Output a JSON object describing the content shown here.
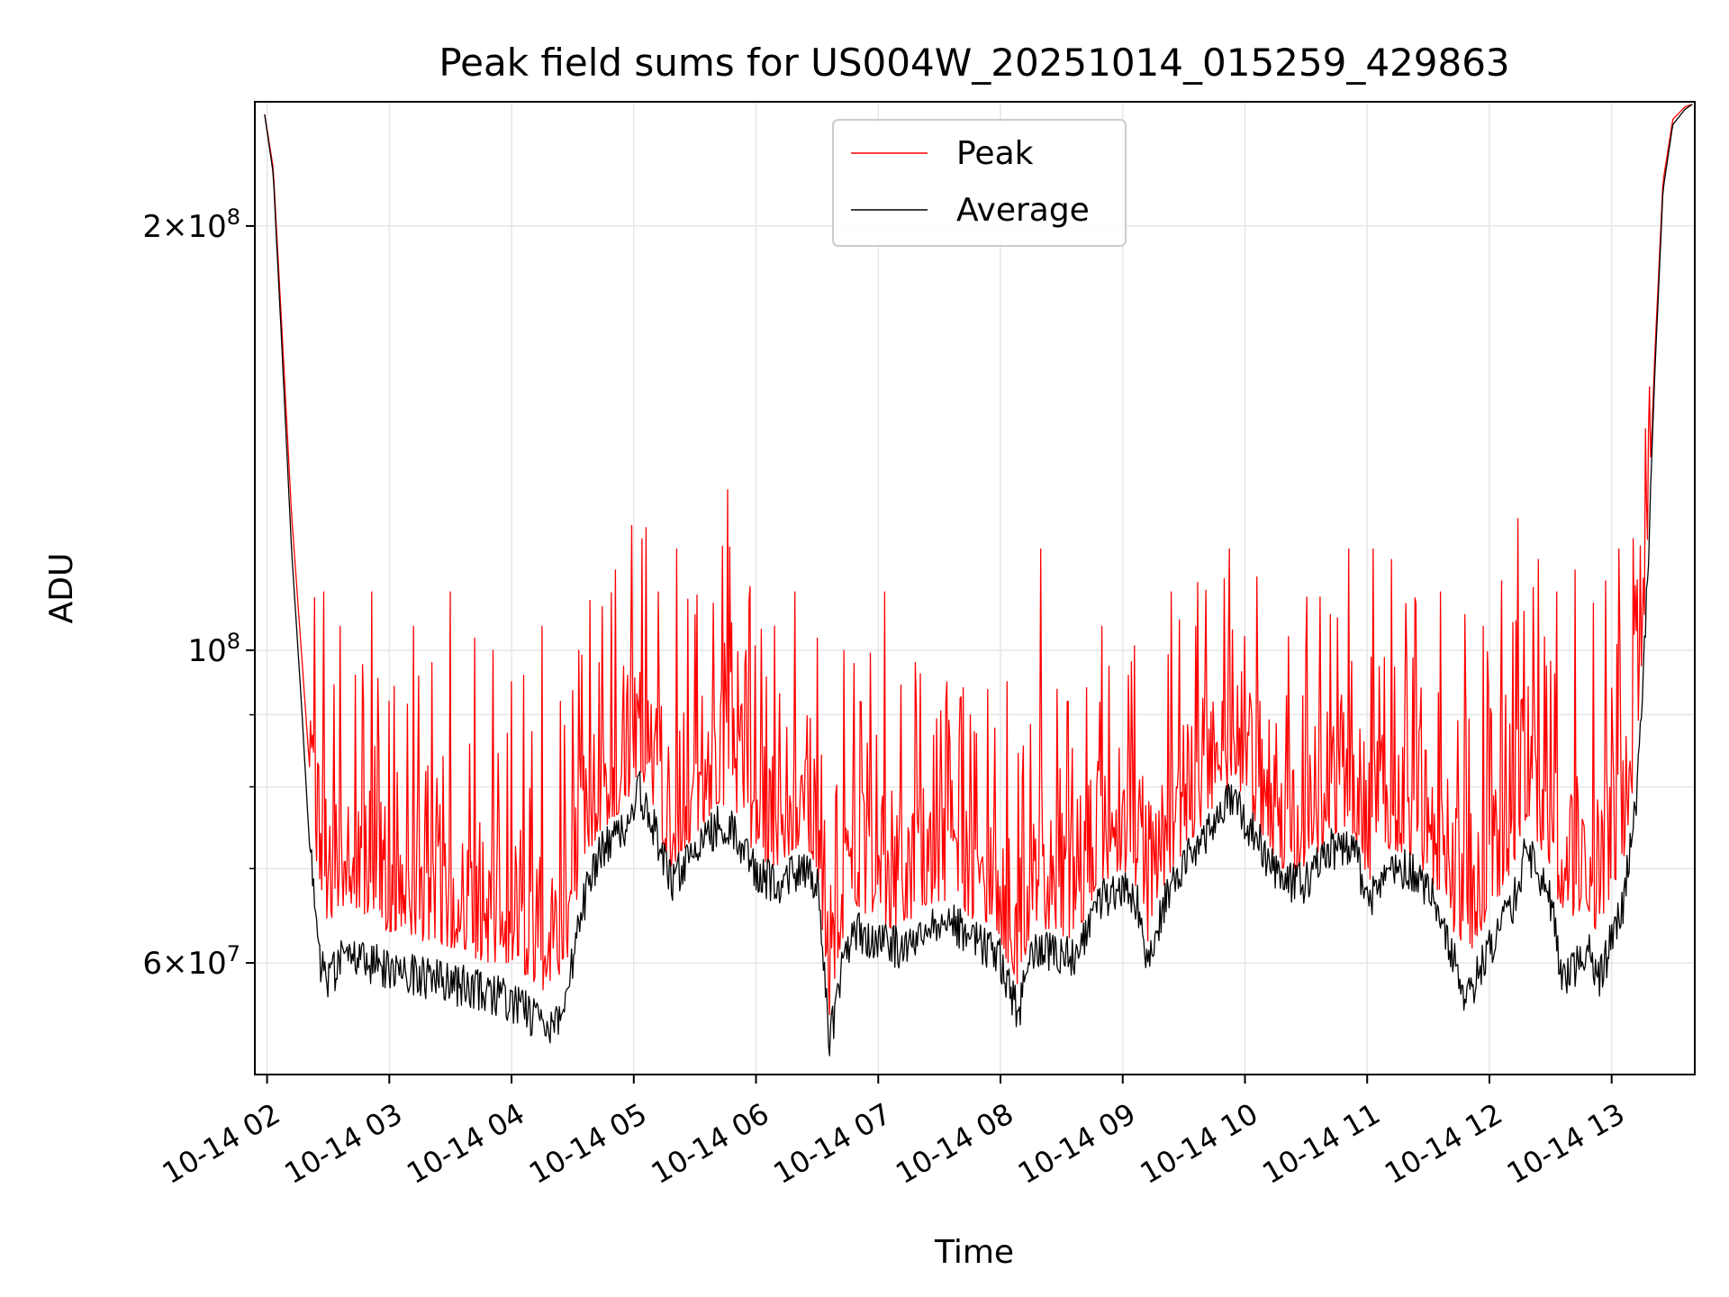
{
  "chart_data": {
    "type": "line",
    "title": "Peak field sums for US004W_20251014_015259_429863",
    "xlabel": "Time",
    "ylabel": "ADU",
    "yscale": "log",
    "grid": true,
    "legend_position": "top-center",
    "x_unit": "hours since 10-14 00:00",
    "xlim": [
      1.9,
      13.68
    ],
    "ylim": [
      50000000,
      245000000
    ],
    "x_ticks": [
      {
        "value": 2,
        "label": "10-14 02"
      },
      {
        "value": 3,
        "label": "10-14 03"
      },
      {
        "value": 4,
        "label": "10-14 04"
      },
      {
        "value": 5,
        "label": "10-14 05"
      },
      {
        "value": 6,
        "label": "10-14 06"
      },
      {
        "value": 7,
        "label": "10-14 07"
      },
      {
        "value": 8,
        "label": "10-14 08"
      },
      {
        "value": 9,
        "label": "10-14 09"
      },
      {
        "value": 10,
        "label": "10-14 10"
      },
      {
        "value": 11,
        "label": "10-14 11"
      },
      {
        "value": 12,
        "label": "10-14 12"
      },
      {
        "value": 13,
        "label": "10-14 13"
      }
    ],
    "y_major_ticks": [
      {
        "value": 60000000,
        "mant": "6",
        "exp": "7"
      },
      {
        "value": 100000000,
        "mant": "",
        "exp": "8"
      },
      {
        "value": 200000000,
        "mant": "2",
        "exp": "8"
      }
    ],
    "y_minor_ticks": [
      70000000,
      80000000,
      90000000
    ],
    "series": [
      {
        "name": "Peak",
        "color": "#ff0000",
        "baseline_x": [
          1.98,
          2.05,
          2.12,
          2.2,
          2.28,
          2.35,
          2.42,
          2.5,
          2.6,
          2.8,
          3.0,
          3.2,
          3.4,
          3.6,
          3.8,
          4.0,
          4.2,
          4.3,
          4.45,
          4.55,
          4.7,
          4.9,
          5.0,
          5.05,
          5.15,
          5.3,
          5.5,
          5.7,
          5.8,
          6.0,
          6.2,
          6.4,
          6.5,
          6.6,
          6.7,
          6.8,
          7.0,
          7.2,
          7.4,
          7.6,
          7.8,
          8.0,
          8.15,
          8.25,
          8.4,
          8.6,
          8.8,
          9.0,
          9.15,
          9.2,
          9.4,
          9.6,
          9.8,
          9.9,
          10.1,
          10.3,
          10.5,
          10.7,
          10.9,
          11.0,
          11.2,
          11.4,
          11.6,
          11.8,
          12.0,
          12.2,
          12.3,
          12.5,
          12.6,
          12.8,
          12.9,
          13.0,
          13.1,
          13.2,
          13.28,
          13.35,
          13.42,
          13.5,
          13.6,
          13.66
        ],
        "baseline_y": [
          240000000,
          220000000,
          170000000,
          125000000,
          100000000,
          82000000,
          68000000,
          64000000,
          66000000,
          65000000,
          63000000,
          62000000,
          62000000,
          61000000,
          60000000,
          60000000,
          58000000,
          57000000,
          60000000,
          68000000,
          74000000,
          77000000,
          80000000,
          82000000,
          78000000,
          70000000,
          74000000,
          78000000,
          77000000,
          71000000,
          70000000,
          73000000,
          70000000,
          55000000,
          62000000,
          66000000,
          64000000,
          63000000,
          66000000,
          66000000,
          64000000,
          62000000,
          57000000,
          63000000,
          63000000,
          62000000,
          68000000,
          70000000,
          67000000,
          62000000,
          70000000,
          74000000,
          79000000,
          80000000,
          75000000,
          70000000,
          70000000,
          74000000,
          74000000,
          68000000,
          72000000,
          71000000,
          67000000,
          60000000,
          65000000,
          70000000,
          76000000,
          70000000,
          64000000,
          66000000,
          62000000,
          68000000,
          70000000,
          84000000,
          110000000,
          160000000,
          215000000,
          238000000,
          243000000,
          244000000
        ],
        "spikes": [
          {
            "x": 2.2,
            "y": 138000000
          },
          {
            "x": 2.32,
            "y": 130000000
          },
          {
            "x": 2.46,
            "y": 110000000
          },
          {
            "x": 2.6,
            "y": 104000000
          },
          {
            "x": 2.72,
            "y": 96000000
          },
          {
            "x": 2.86,
            "y": 110000000
          },
          {
            "x": 3.0,
            "y": 92000000
          },
          {
            "x": 3.2,
            "y": 104000000
          },
          {
            "x": 3.35,
            "y": 98000000
          },
          {
            "x": 3.5,
            "y": 110000000
          },
          {
            "x": 3.7,
            "y": 102000000
          },
          {
            "x": 3.85,
            "y": 100000000
          },
          {
            "x": 4.0,
            "y": 95000000
          },
          {
            "x": 4.1,
            "y": 96000000
          },
          {
            "x": 4.25,
            "y": 104000000
          },
          {
            "x": 4.4,
            "y": 92000000
          },
          {
            "x": 4.55,
            "y": 100000000
          },
          {
            "x": 4.72,
            "y": 98000000
          },
          {
            "x": 4.85,
            "y": 114000000
          },
          {
            "x": 4.95,
            "y": 96000000
          },
          {
            "x": 5.07,
            "y": 120000000
          },
          {
            "x": 5.2,
            "y": 110000000
          },
          {
            "x": 5.35,
            "y": 118000000
          },
          {
            "x": 5.5,
            "y": 106000000
          },
          {
            "x": 5.65,
            "y": 108000000
          },
          {
            "x": 5.77,
            "y": 130000000
          },
          {
            "x": 5.92,
            "y": 100000000
          },
          {
            "x": 6.15,
            "y": 104000000
          },
          {
            "x": 6.32,
            "y": 110000000
          },
          {
            "x": 6.5,
            "y": 102000000
          },
          {
            "x": 6.72,
            "y": 100000000
          },
          {
            "x": 6.85,
            "y": 92000000
          },
          {
            "x": 7.05,
            "y": 110000000
          },
          {
            "x": 7.3,
            "y": 98000000
          },
          {
            "x": 7.55,
            "y": 92000000
          },
          {
            "x": 7.75,
            "y": 90000000
          },
          {
            "x": 8.05,
            "y": 95000000
          },
          {
            "x": 8.33,
            "y": 118000000
          },
          {
            "x": 8.55,
            "y": 92000000
          },
          {
            "x": 8.83,
            "y": 104000000
          },
          {
            "x": 9.05,
            "y": 96000000
          },
          {
            "x": 9.4,
            "y": 110000000
          },
          {
            "x": 9.6,
            "y": 104000000
          },
          {
            "x": 9.87,
            "y": 118000000
          },
          {
            "x": 10.12,
            "y": 92000000
          },
          {
            "x": 10.5,
            "y": 100000000
          },
          {
            "x": 10.7,
            "y": 106000000
          },
          {
            "x": 10.85,
            "y": 118000000
          },
          {
            "x": 11.05,
            "y": 118000000
          },
          {
            "x": 11.2,
            "y": 116000000
          },
          {
            "x": 11.4,
            "y": 108000000
          },
          {
            "x": 11.6,
            "y": 110000000
          },
          {
            "x": 11.8,
            "y": 106000000
          },
          {
            "x": 11.95,
            "y": 104000000
          },
          {
            "x": 12.1,
            "y": 112000000
          },
          {
            "x": 12.23,
            "y": 124000000
          },
          {
            "x": 12.4,
            "y": 116000000
          },
          {
            "x": 12.55,
            "y": 110000000
          },
          {
            "x": 12.7,
            "y": 114000000
          },
          {
            "x": 12.85,
            "y": 108000000
          },
          {
            "x": 12.95,
            "y": 112000000
          },
          {
            "x": 13.06,
            "y": 118000000
          },
          {
            "x": 13.18,
            "y": 120000000
          }
        ]
      },
      {
        "name": "Average",
        "color": "#000000",
        "baseline_x": [
          1.98,
          2.05,
          2.12,
          2.2,
          2.28,
          2.35,
          2.42,
          2.5,
          2.6,
          2.8,
          3.0,
          3.2,
          3.4,
          3.6,
          3.8,
          4.0,
          4.2,
          4.3,
          4.45,
          4.55,
          4.7,
          4.9,
          5.0,
          5.05,
          5.15,
          5.3,
          5.5,
          5.7,
          5.8,
          6.0,
          6.2,
          6.4,
          6.5,
          6.6,
          6.7,
          6.8,
          7.0,
          7.2,
          7.4,
          7.6,
          7.8,
          8.0,
          8.15,
          8.25,
          8.4,
          8.6,
          8.8,
          9.0,
          9.15,
          9.2,
          9.4,
          9.6,
          9.8,
          9.9,
          10.1,
          10.3,
          10.5,
          10.7,
          10.9,
          11.0,
          11.2,
          11.4,
          11.6,
          11.8,
          12.0,
          12.2,
          12.3,
          12.5,
          12.6,
          12.8,
          12.9,
          13.0,
          13.1,
          13.2,
          13.28,
          13.35,
          13.42,
          13.5,
          13.6,
          13.66
        ],
        "baseline_y": [
          240000000,
          218000000,
          165000000,
          118000000,
          92000000,
          72000000,
          60000000,
          58000000,
          60000000,
          60000000,
          59000000,
          58500000,
          58000000,
          57500000,
          57000000,
          56000000,
          54500000,
          53500000,
          56000000,
          64000000,
          71000000,
          74000000,
          77000000,
          79000000,
          75000000,
          68000000,
          72000000,
          75000000,
          74000000,
          69000000,
          68000000,
          70000000,
          68000000,
          52000000,
          59000000,
          63000000,
          62000000,
          61000000,
          64000000,
          64000000,
          62000000,
          60000000,
          55000000,
          61000000,
          61000000,
          60000000,
          66000000,
          68000000,
          65000000,
          60000000,
          68000000,
          72000000,
          77000000,
          78000000,
          73000000,
          68000000,
          68000000,
          72000000,
          72000000,
          66000000,
          70000000,
          69000000,
          65000000,
          56000000,
          61000000,
          66000000,
          72000000,
          66000000,
          58000000,
          61000000,
          58000000,
          62000000,
          66000000,
          78000000,
          105000000,
          155000000,
          212000000,
          236000000,
          242000000,
          244000000
        ]
      }
    ]
  }
}
